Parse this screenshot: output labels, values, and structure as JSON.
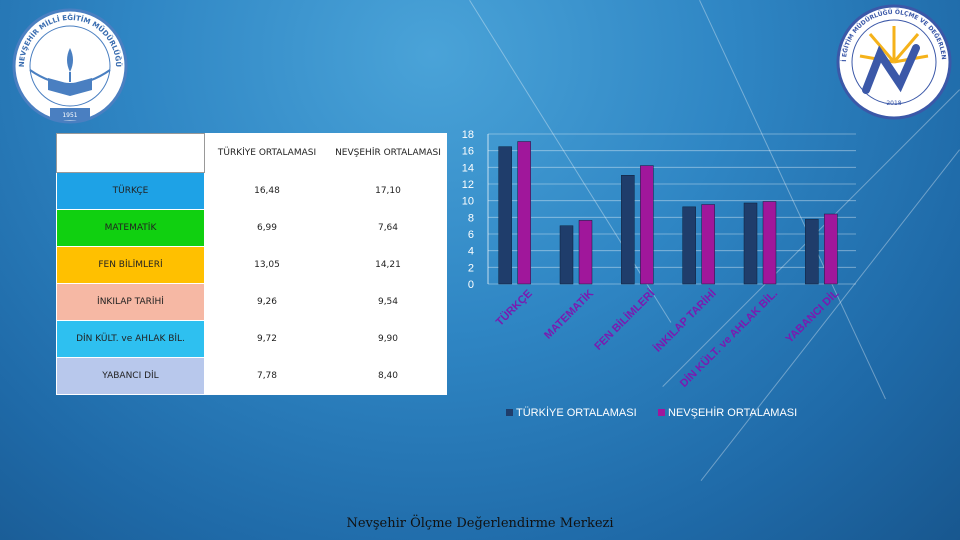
{
  "table": {
    "headers": [
      "",
      "TÜRKİYE ORTALAMASI",
      "NEVŞEHİR ORTALAMASI"
    ],
    "rows": [
      {
        "subject": "TÜRKÇE",
        "tr": "16,48",
        "nv": "17,10",
        "color": "#1ea2e6"
      },
      {
        "subject": "MATEMATİK",
        "tr": "6,99",
        "nv": "7,64",
        "color": "#10d010"
      },
      {
        "subject": "FEN BİLİMLERİ",
        "tr": "13,05",
        "nv": "14,21",
        "color": "#ffc000"
      },
      {
        "subject": "İNKILAP TARİHİ",
        "tr": "9,26",
        "nv": "9,54",
        "color": "#f6b8a4"
      },
      {
        "subject": "DİN KÜLT. ve AHLAK BİL.",
        "tr": "9,72",
        "nv": "9,90",
        "color": "#2ec0f0"
      },
      {
        "subject": "YABANCI DİL",
        "tr": "7,78",
        "nv": "8,40",
        "color": "#b8c8ec"
      }
    ]
  },
  "chart_data": {
    "type": "bar",
    "categories": [
      "TÜRKÇE",
      "MATEMATİK",
      "FEN BİLİMLERİ",
      "İNKILAP TARİHİ",
      "DİN KÜLT. ve AHLAK BİL.",
      "YABANCI DİL"
    ],
    "series": [
      {
        "name": "TÜRKİYE ORTALAMASI",
        "values": [
          16.48,
          6.99,
          13.05,
          9.26,
          9.72,
          7.78
        ],
        "color": "#1f3d6b"
      },
      {
        "name": "NEVŞEHİR ORTALAMASI",
        "values": [
          17.1,
          7.64,
          14.21,
          9.54,
          9.9,
          8.4
        ],
        "color": "#a0179b"
      }
    ],
    "ylim": [
      0,
      18
    ],
    "yticks": [
      0,
      2,
      4,
      6,
      8,
      10,
      12,
      14,
      16,
      18
    ],
    "grid": true,
    "legend": "bottom"
  },
  "logos": {
    "left_text": "NEVŞEHİR MİLLİ EĞİTİM MÜDÜRLÜĞÜ",
    "left_year": "1951",
    "right_text": "NEVŞEHİR MİLLİ EĞİTİM MÜDÜRLÜĞÜ ÖLÇME VE DEĞERLENDİRME MERKEZİ",
    "right_year": "2018"
  },
  "footer": "Nevşehir Ölçme Değerlendirme Merkezi"
}
